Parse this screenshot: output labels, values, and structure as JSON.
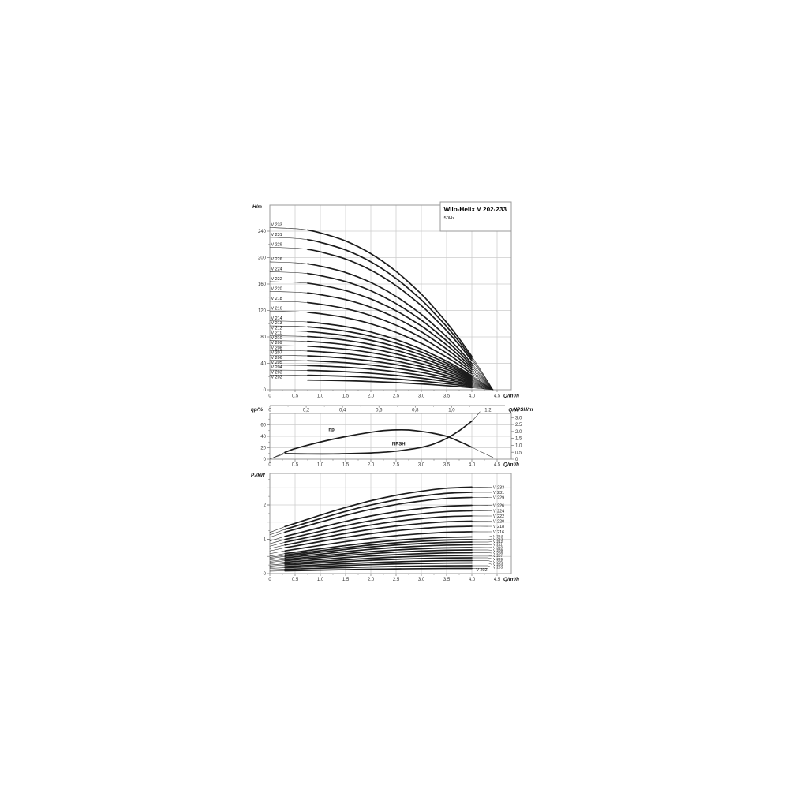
{
  "page": {
    "background": "#ffffff"
  },
  "header": {
    "title": "Wilo-Helix V 202-233",
    "subtitle": "50Hz"
  },
  "colors": {
    "curve": "#1c1c1c",
    "grid": "#cccccc",
    "border": "#999999",
    "tick": "#777777"
  },
  "chart_data": [
    {
      "id": "head-curves",
      "type": "line",
      "title": "Wilo-Helix V 202-233",
      "subtitle": "50Hz",
      "ylabel": "H/m",
      "xlabel": "Q/m³/h",
      "xlabel_secondary": "Q/l/s",
      "xlim": [
        0,
        4.78
      ],
      "ylim": [
        0,
        279
      ],
      "grid": true,
      "x_ticks": [
        "0",
        "0.5",
        "1.0",
        "1.5",
        "2.0",
        "2.5",
        "3.0",
        "3.5",
        "4.0",
        "4.5"
      ],
      "x2_ticks": [
        "0",
        "0,2",
        "0,4",
        "0,6",
        "0,8",
        "1,0",
        "1,2"
      ],
      "y_ticks": [
        "0",
        "40",
        "80",
        "120",
        "160",
        "200",
        "240"
      ],
      "x2_unit_factor_m3h_per_ls": 3.6,
      "q_profile": [
        0,
        0.5,
        0.75,
        1,
        1.5,
        2,
        2.5,
        3,
        3.25,
        3.5,
        3.75,
        4,
        4.2,
        4.42
      ],
      "head_factor": [
        1,
        0.993,
        0.985,
        0.967,
        0.917,
        0.839,
        0.73,
        0.59,
        0.505,
        0.415,
        0.315,
        0.205,
        0.11,
        0
      ],
      "series": [
        {
          "model": "V 202",
          "shutoff_head_m": 14.9
        },
        {
          "model": "V 203",
          "shutoff_head_m": 22.3
        },
        {
          "model": "V 204",
          "shutoff_head_m": 29.8
        },
        {
          "model": "V 205",
          "shutoff_head_m": 37.2
        },
        {
          "model": "V 206",
          "shutoff_head_m": 44.6
        },
        {
          "model": "V 207",
          "shutoff_head_m": 52.1
        },
        {
          "model": "V 208",
          "shutoff_head_m": 59.5
        },
        {
          "model": "V 209",
          "shutoff_head_m": 67.0
        },
        {
          "model": "V 210",
          "shutoff_head_m": 74.4
        },
        {
          "model": "V 211",
          "shutoff_head_m": 81.8
        },
        {
          "model": "V 212",
          "shutoff_head_m": 89.3
        },
        {
          "model": "V 213",
          "shutoff_head_m": 96.7
        },
        {
          "model": "V 214",
          "shutoff_head_m": 104.2
        },
        {
          "model": "V 216",
          "shutoff_head_m": 119.0
        },
        {
          "model": "V 218",
          "shutoff_head_m": 133.9
        },
        {
          "model": "V 220",
          "shutoff_head_m": 148.8
        },
        {
          "model": "V 222",
          "shutoff_head_m": 163.7
        },
        {
          "model": "V 224",
          "shutoff_head_m": 178.6
        },
        {
          "model": "V 226",
          "shutoff_head_m": 193.5
        },
        {
          "model": "V 229",
          "shutoff_head_m": 215.8
        },
        {
          "model": "V 231",
          "shutoff_head_m": 230.7
        },
        {
          "model": "V 233",
          "shutoff_head_m": 245.5
        }
      ]
    },
    {
      "id": "efficiency-npsh",
      "type": "line",
      "ylabel_left": "ηp/%",
      "ylabel_right": "NPSH/m",
      "xlabel": "Q/m³/h",
      "xlim": [
        0,
        4.78
      ],
      "ylim_left": [
        0,
        80
      ],
      "ylim_right": [
        0,
        3.3
      ],
      "grid": true,
      "x_ticks": [
        "0",
        "0.5",
        "1.0",
        "1.5",
        "2.0",
        "2.5",
        "3.0",
        "3.5",
        "4.0",
        "4.5"
      ],
      "y_left_ticks": [
        "0",
        "20",
        "40",
        "60"
      ],
      "y_right_ticks": [
        "0",
        "0.5",
        "1.0",
        "1.5",
        "2.0",
        "2.5",
        "3.0"
      ],
      "thick_range_q": [
        0.3,
        4.0
      ],
      "series": [
        {
          "name": "ηp",
          "axis": "left",
          "label_pos": [
            1.22,
            49
          ],
          "points": [
            [
              0,
              0
            ],
            [
              0.3,
              12
            ],
            [
              0.5,
              18.5
            ],
            [
              0.75,
              24.5
            ],
            [
              1,
              30
            ],
            [
              1.25,
              35
            ],
            [
              1.5,
              39.5
            ],
            [
              1.75,
              43.5
            ],
            [
              2,
              47
            ],
            [
              2.25,
              50
            ],
            [
              2.5,
              51.2
            ],
            [
              2.75,
              51
            ],
            [
              3,
              48.5
            ],
            [
              3.25,
              45
            ],
            [
              3.5,
              40
            ],
            [
              3.75,
              31
            ],
            [
              4,
              21
            ],
            [
              4.2,
              12
            ],
            [
              4.42,
              3
            ]
          ]
        },
        {
          "name": "NPSH",
          "axis": "right",
          "label_pos": [
            2.55,
            1.0
          ],
          "points": [
            [
              0.08,
              0.12
            ],
            [
              0.3,
              0.4
            ],
            [
              0.75,
              0.38
            ],
            [
              1.25,
              0.38
            ],
            [
              1.75,
              0.42
            ],
            [
              2,
              0.45
            ],
            [
              2.25,
              0.5
            ],
            [
              2.5,
              0.58
            ],
            [
              2.75,
              0.7
            ],
            [
              3,
              0.85
            ],
            [
              3.25,
              1.1
            ],
            [
              3.5,
              1.5
            ],
            [
              3.75,
              2.05
            ],
            [
              4,
              2.75
            ],
            [
              4.08,
              3.05
            ],
            [
              4.16,
              3.42
            ]
          ]
        }
      ]
    },
    {
      "id": "power",
      "type": "line",
      "ylabel": "P₂/kW",
      "xlabel": "Q/m³/h",
      "xlim": [
        0,
        4.78
      ],
      "ylim": [
        0,
        2.92
      ],
      "grid": true,
      "x_ticks": [
        "0",
        "0.5",
        "1.0",
        "1.5",
        "2.0",
        "2.5",
        "3.0",
        "3.5",
        "4.0",
        "4.5"
      ],
      "y_ticks": [
        "0",
        "1",
        "2"
      ],
      "q_profile": [
        0,
        0.3,
        0.5,
        1,
        1.5,
        2,
        2.5,
        3,
        3.5,
        4,
        4.32
      ],
      "rise_factor": [
        0,
        0.13,
        0.2,
        0.38,
        0.55,
        0.7,
        0.82,
        0.91,
        0.975,
        1.0,
        0.998
      ],
      "inside_label": "V 202",
      "series": [
        {
          "model": "V 202",
          "p0_kw": 0.07,
          "p4_kw": 0.15
        },
        {
          "model": "V 203",
          "p0_kw": 0.11,
          "p4_kw": 0.23
        },
        {
          "model": "V 204",
          "p0_kw": 0.15,
          "p4_kw": 0.31
        },
        {
          "model": "V 205",
          "p0_kw": 0.18,
          "p4_kw": 0.38
        },
        {
          "model": "V 206",
          "p0_kw": 0.22,
          "p4_kw": 0.46
        },
        {
          "model": "V 207",
          "p0_kw": 0.25,
          "p4_kw": 0.53
        },
        {
          "model": "V 208",
          "p0_kw": 0.29,
          "p4_kw": 0.61
        },
        {
          "model": "V 209",
          "p0_kw": 0.33,
          "p4_kw": 0.69
        },
        {
          "model": "V 210",
          "p0_kw": 0.36,
          "p4_kw": 0.76
        },
        {
          "model": "V 211",
          "p0_kw": 0.4,
          "p4_kw": 0.84
        },
        {
          "model": "V 212",
          "p0_kw": 0.44,
          "p4_kw": 0.92
        },
        {
          "model": "V 213",
          "p0_kw": 0.47,
          "p4_kw": 0.99
        },
        {
          "model": "V 214",
          "p0_kw": 0.51,
          "p4_kw": 1.07
        },
        {
          "model": "V 216",
          "p0_kw": 0.58,
          "p4_kw": 1.22
        },
        {
          "model": "V 218",
          "p0_kw": 0.66,
          "p4_kw": 1.38
        },
        {
          "model": "V 220",
          "p0_kw": 0.73,
          "p4_kw": 1.53
        },
        {
          "model": "V 222",
          "p0_kw": 0.8,
          "p4_kw": 1.68
        },
        {
          "model": "V 224",
          "p0_kw": 0.87,
          "p4_kw": 1.83
        },
        {
          "model": "V 226",
          "p0_kw": 0.95,
          "p4_kw": 1.99
        },
        {
          "model": "V 229",
          "p0_kw": 1.06,
          "p4_kw": 2.22
        },
        {
          "model": "V 231",
          "p0_kw": 1.13,
          "p4_kw": 2.37
        },
        {
          "model": "V 233",
          "p0_kw": 1.2,
          "p4_kw": 2.52
        }
      ]
    }
  ]
}
